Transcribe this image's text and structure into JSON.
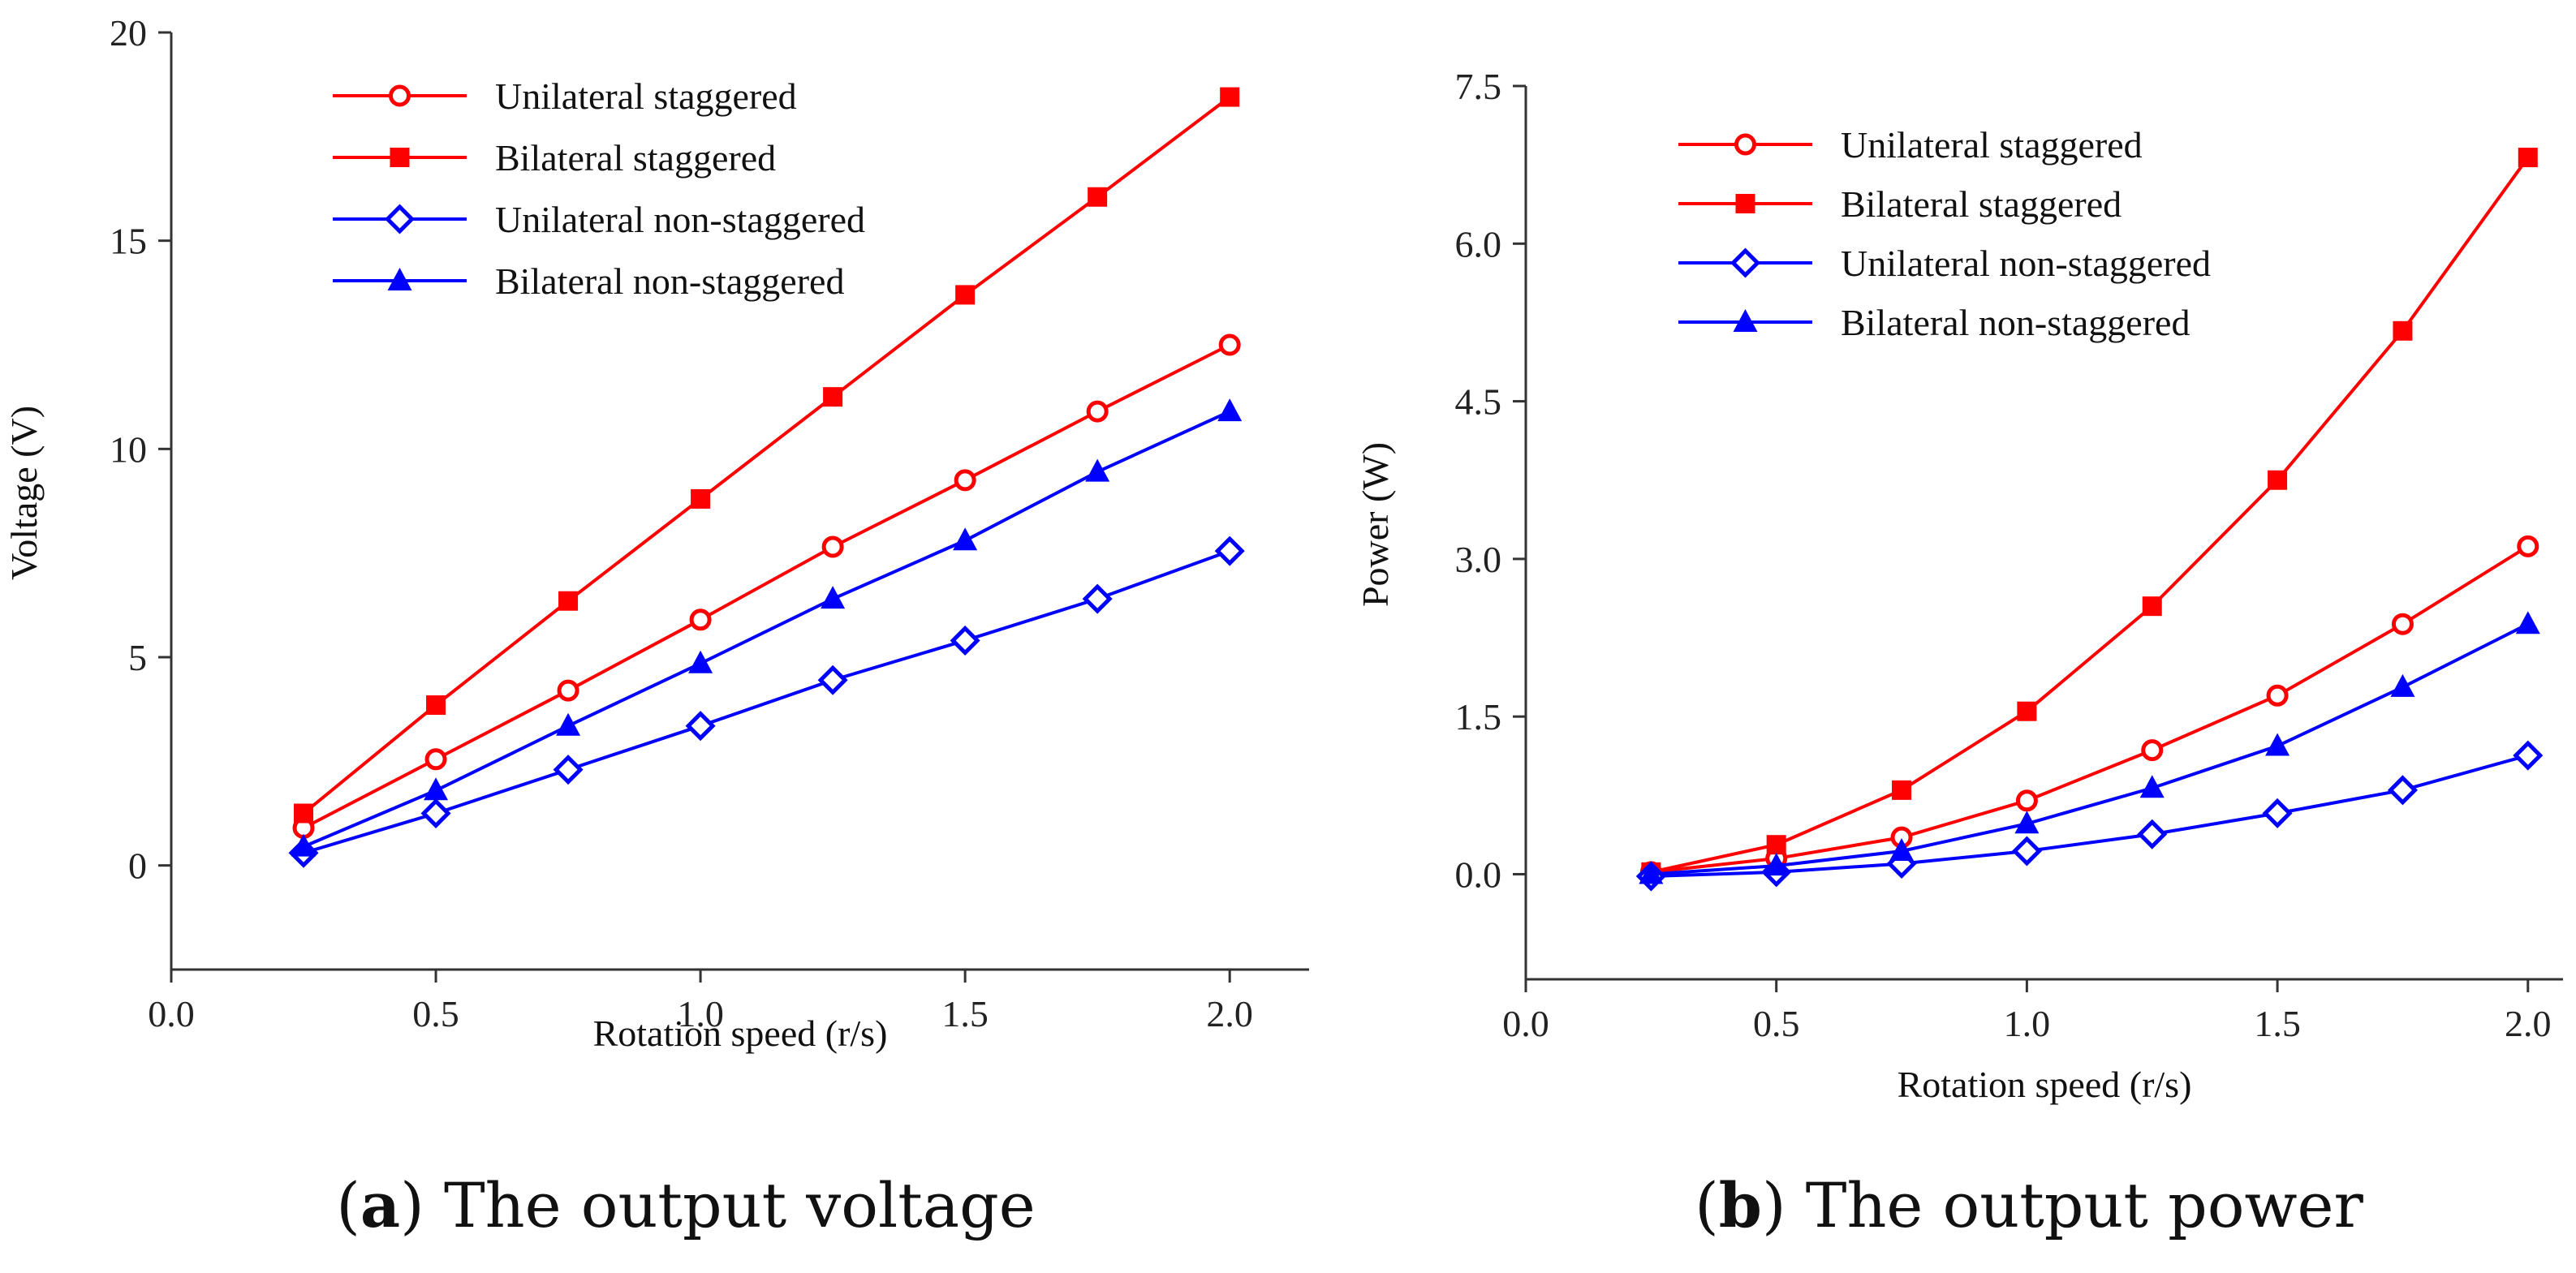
{
  "chart_data": [
    {
      "type": "line",
      "caption": {
        "letter": "a",
        "text": "The output voltage"
      },
      "xlabel": "Rotation speed (r/s)",
      "ylabel": "Voltage (V)",
      "xlim": [
        0.0,
        2.15
      ],
      "ylim": [
        -2.5,
        20
      ],
      "xticks": [
        "0.0",
        "0.5",
        "1.0",
        "1.5",
        "2.0"
      ],
      "yticks": [
        "0",
        "5",
        "10",
        "15",
        "20"
      ],
      "x": [
        0.25,
        0.5,
        0.75,
        1.0,
        1.25,
        1.5,
        1.75,
        2.0
      ],
      "legend_position": "top-left",
      "series": [
        {
          "name": "Unilateral staggered",
          "color": "#ff0000",
          "marker": "open-circle",
          "values": [
            0.9,
            2.55,
            4.2,
            5.9,
            7.65,
            9.25,
            10.9,
            12.5
          ]
        },
        {
          "name": "Bilateral staggered",
          "color": "#ff0000",
          "marker": "filled-square",
          "values": [
            1.25,
            3.85,
            6.35,
            8.8,
            11.25,
            13.7,
            16.05,
            18.45
          ]
        },
        {
          "name": "Unilateral non-staggered",
          "color": "#0000ff",
          "marker": "open-diamond",
          "values": [
            0.3,
            1.25,
            2.3,
            3.35,
            4.45,
            5.4,
            6.4,
            7.55
          ]
        },
        {
          "name": "Bilateral non-staggered",
          "color": "#0000ff",
          "marker": "filled-triangle",
          "values": [
            0.45,
            1.8,
            3.35,
            4.85,
            6.4,
            7.8,
            9.45,
            10.9
          ]
        }
      ]
    },
    {
      "type": "line",
      "caption": {
        "letter": "b",
        "text": "The output power"
      },
      "xlabel": "Rotation speed (r/s)",
      "ylabel": "Power (W)",
      "xlim": [
        0.0,
        2.07
      ],
      "ylim": [
        -1.0,
        7.5
      ],
      "xticks": [
        "0.0",
        "0.5",
        "1.0",
        "1.5",
        "2.0"
      ],
      "yticks": [
        "0.0",
        "1.5",
        "3.0",
        "4.5",
        "6.0",
        "7.5"
      ],
      "x": [
        0.25,
        0.5,
        0.75,
        1.0,
        1.25,
        1.5,
        1.75,
        2.0
      ],
      "legend_position": "top-left",
      "series": [
        {
          "name": "Unilateral staggered",
          "color": "#ff0000",
          "marker": "open-circle",
          "values": [
            0.02,
            0.15,
            0.35,
            0.7,
            1.18,
            1.7,
            2.38,
            3.12
          ]
        },
        {
          "name": "Bilateral staggered",
          "color": "#ff0000",
          "marker": "filled-square",
          "values": [
            0.02,
            0.28,
            0.8,
            1.55,
            2.55,
            3.75,
            5.17,
            6.82
          ]
        },
        {
          "name": "Unilateral non-staggered",
          "color": "#0000ff",
          "marker": "open-diamond",
          "values": [
            -0.02,
            0.02,
            0.1,
            0.22,
            0.38,
            0.58,
            0.8,
            1.13
          ]
        },
        {
          "name": "Bilateral non-staggered",
          "color": "#0000ff",
          "marker": "filled-triangle",
          "values": [
            0.0,
            0.08,
            0.22,
            0.48,
            0.82,
            1.22,
            1.78,
            2.38
          ]
        }
      ]
    }
  ]
}
